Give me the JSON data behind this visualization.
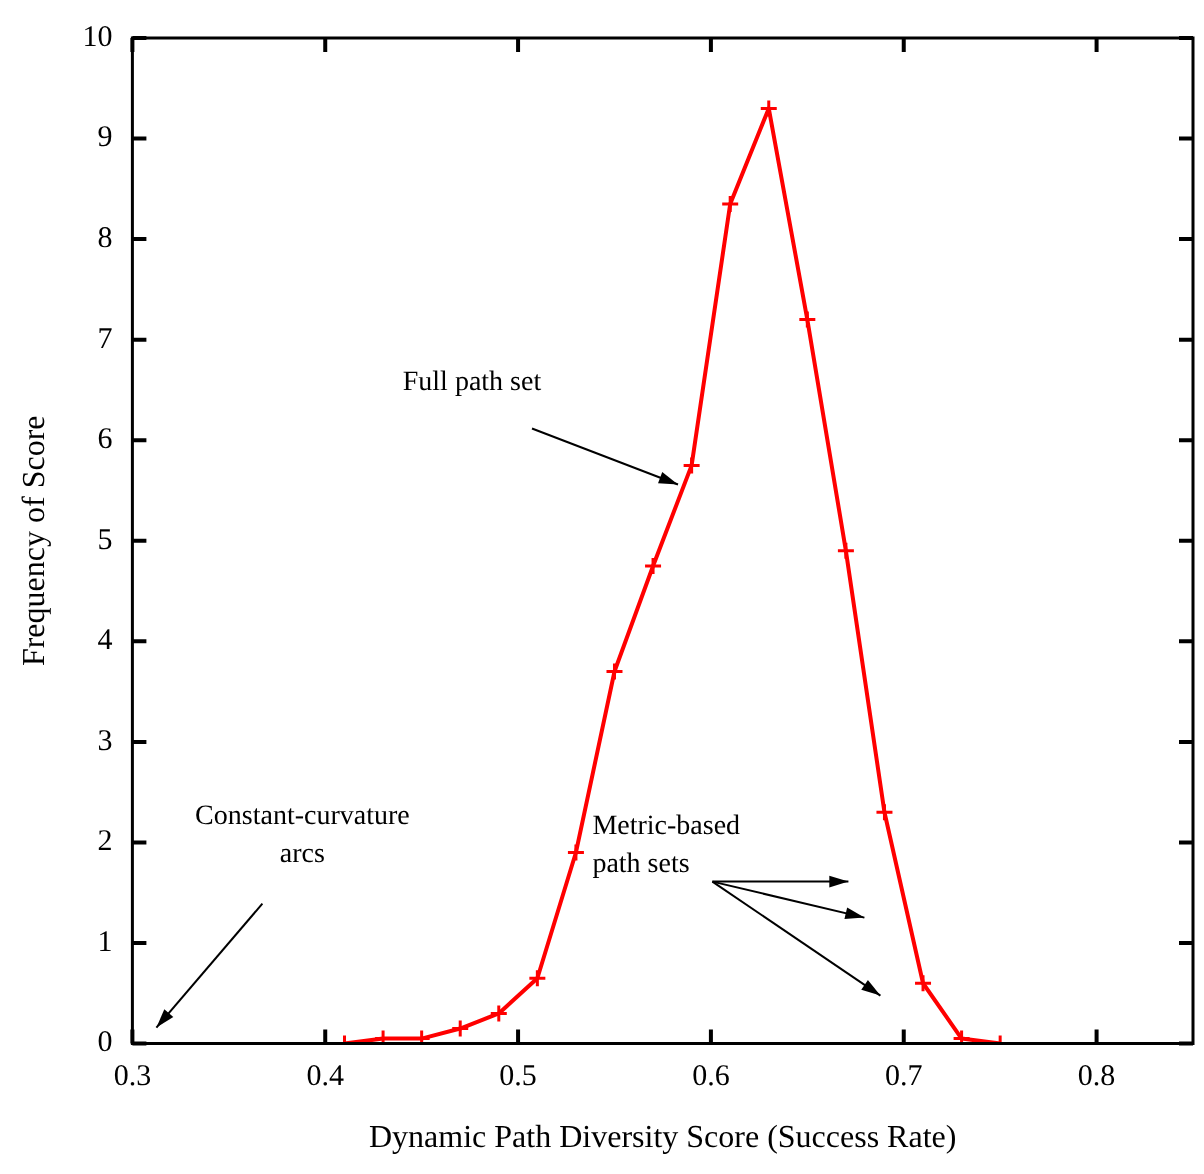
{
  "chart_data": {
    "type": "line",
    "xlabel": "Dynamic Path Diversity Score (Success Rate)",
    "ylabel": "Frequency of Score",
    "x": [
      0.41,
      0.43,
      0.45,
      0.47,
      0.49,
      0.51,
      0.53,
      0.55,
      0.57,
      0.59,
      0.61,
      0.63,
      0.65,
      0.67,
      0.69,
      0.71,
      0.73,
      0.75
    ],
    "series": [
      {
        "color": "#ff0000",
        "values": [
          0,
          0.05,
          0.05,
          0.15,
          0.3,
          0.65,
          1.9,
          3.7,
          4.75,
          5.75,
          8.35,
          9.3,
          7.2,
          4.9,
          2.3,
          0.6,
          0.05,
          0
        ]
      }
    ],
    "xlim": [
      0.3,
      0.85
    ],
    "xticks": [
      0.3,
      0.4,
      0.5,
      0.6,
      0.7,
      0.8
    ],
    "ylim": [
      0,
      10
    ],
    "yticks": [
      0,
      1,
      2,
      3,
      4,
      5,
      6,
      7,
      8,
      9,
      10
    ],
    "grid": false,
    "legend": false,
    "marker": "cross",
    "line_style": "solid",
    "annotations": [
      {
        "text": "Full path set",
        "x": 0.585,
        "y": 5.6
      },
      "Metric-based\npath sets",
      "Constant-curvature\narcs"
    ]
  }
}
